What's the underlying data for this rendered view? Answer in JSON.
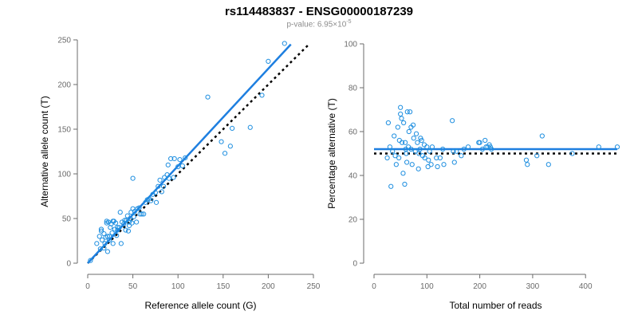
{
  "header": {
    "title": "rs114483837 - ENSG00000187239",
    "pvalue_prefix": "p-value: 6.95×10",
    "pvalue_exponent": "-5"
  },
  "colors": {
    "points": "#1f8fe0",
    "fit_line": "#1e7fe0",
    "reference_line": "#000000",
    "axis": "#6b6b6b"
  },
  "chart_data": [
    {
      "type": "scatter",
      "xlabel": "Reference allele count (G)",
      "ylabel": "Alternative allele count (T)",
      "xlim": [
        0,
        250
      ],
      "ylim": [
        0,
        250
      ],
      "x_ticks": [
        0,
        50,
        100,
        150,
        200,
        250
      ],
      "y_ticks": [
        0,
        50,
        100,
        150,
        200,
        250
      ],
      "grid": false,
      "fit_line": {
        "style": "solid",
        "from": [
          0,
          0
        ],
        "to": [
          225,
          245
        ]
      },
      "reference_line": {
        "style": "dotted",
        "from": [
          0,
          0
        ],
        "to": [
          245,
          245
        ]
      },
      "x": [
        3,
        10,
        13,
        14,
        15,
        15,
        16,
        18,
        18,
        19,
        20,
        21,
        21,
        22,
        22,
        23,
        24,
        24,
        25,
        26,
        27,
        28,
        28,
        29,
        30,
        31,
        32,
        33,
        33,
        35,
        36,
        37,
        38,
        40,
        41,
        42,
        43,
        44,
        45,
        46,
        46,
        47,
        48,
        49,
        50,
        50,
        51,
        52,
        54,
        55,
        57,
        58,
        60,
        62,
        64,
        66,
        68,
        70,
        72,
        75,
        76,
        78,
        80,
        82,
        84,
        85,
        88,
        89,
        90,
        92,
        95,
        96,
        100,
        102,
        105,
        108,
        133,
        148,
        152,
        158,
        160,
        180,
        193,
        200,
        218
      ],
      "y": [
        3,
        22,
        30,
        16,
        36,
        38,
        26,
        33,
        17,
        22,
        29,
        45,
        47,
        30,
        13,
        46,
        26,
        30,
        40,
        44,
        34,
        47,
        22,
        47,
        38,
        45,
        31,
        40,
        37,
        40,
        57,
        22,
        46,
        44,
        48,
        37,
        48,
        53,
        36,
        46,
        42,
        50,
        57,
        45,
        61,
        95,
        52,
        58,
        46,
        61,
        62,
        55,
        55,
        55,
        68,
        71,
        72,
        70,
        77,
        79,
        68,
        86,
        93,
        80,
        86,
        96,
        99,
        110,
        95,
        117,
        96,
        117,
        108,
        116,
        109,
        118,
        186,
        136,
        123,
        131,
        151,
        152,
        188,
        226,
        246
      ]
    },
    {
      "type": "scatter",
      "xlabel": "Total number of reads",
      "ylabel": "Percentage alternative (T)",
      "xlim": [
        0,
        460
      ],
      "ylim": [
        0,
        100
      ],
      "x_ticks": [
        0,
        100,
        200,
        300,
        400
      ],
      "y_ticks": [
        0,
        20,
        40,
        60,
        80,
        100
      ],
      "grid": false,
      "fit_line": {
        "style": "solid",
        "from": [
          0,
          52
        ],
        "to": [
          460,
          52
        ]
      },
      "reference_line": {
        "style": "dotted",
        "from": [
          0,
          50
        ],
        "to": [
          460,
          50
        ]
      },
      "x": [
        25,
        27,
        30,
        32,
        35,
        38,
        40,
        42,
        45,
        47,
        48,
        50,
        50,
        52,
        53,
        55,
        56,
        58,
        59,
        60,
        61,
        62,
        63,
        65,
        66,
        68,
        70,
        70,
        72,
        74,
        75,
        78,
        80,
        82,
        84,
        85,
        87,
        88,
        90,
        92,
        95,
        96,
        100,
        102,
        103,
        105,
        108,
        110,
        118,
        120,
        125,
        130,
        132,
        148,
        150,
        152,
        156,
        165,
        170,
        178,
        198,
        200,
        205,
        210,
        212,
        215,
        218,
        220,
        222,
        288,
        290,
        308,
        318,
        330,
        375,
        425,
        460
      ],
      "y": [
        48,
        64,
        53,
        35,
        51,
        58,
        49,
        45,
        62,
        48,
        56,
        68,
        71,
        66,
        55,
        41,
        64,
        36,
        55,
        52,
        50,
        46,
        69,
        53,
        60,
        69,
        62,
        52,
        45,
        63,
        57,
        51,
        59,
        55,
        43,
        50,
        52,
        57,
        56,
        49,
        54,
        48,
        53,
        44,
        47,
        51,
        45,
        53,
        48,
        44,
        48,
        52,
        45,
        65,
        51,
        46,
        51,
        49,
        52,
        53,
        55,
        55,
        52,
        56,
        53,
        53,
        54,
        53,
        52,
        47,
        45,
        49,
        58,
        45,
        50,
        53,
        53
      ]
    }
  ]
}
